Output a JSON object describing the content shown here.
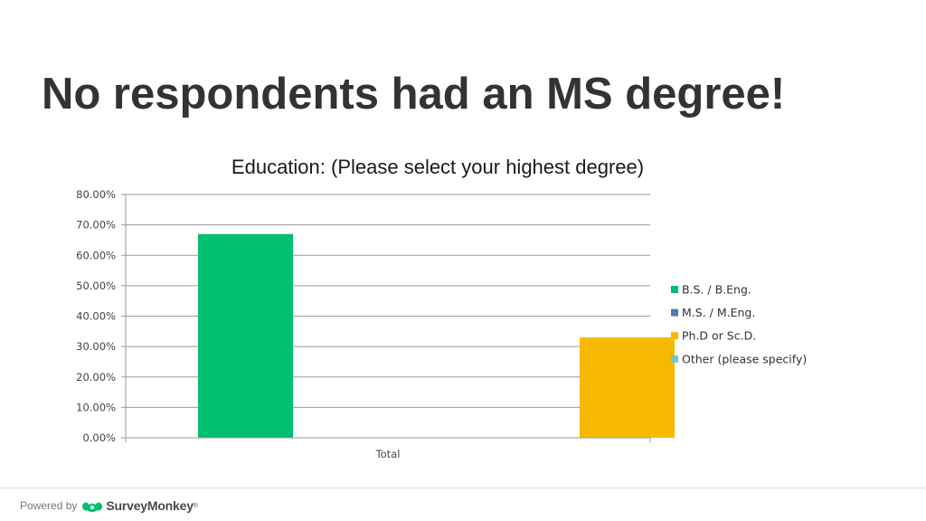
{
  "slide": {
    "title": "No respondents had an MS degree!"
  },
  "footer": {
    "powered_by": "Powered by",
    "brand": "SurveyMonkey",
    "brand_mark": "®"
  },
  "colors": {
    "bs": "#00bf6f",
    "ms": "#507cb6",
    "phd": "#f7b900",
    "other": "#6bc8cd",
    "grid": "#9a9a9a",
    "brand_green": "#00bf6f"
  },
  "chart_data": {
    "type": "bar",
    "title": "Education: (Please select your highest degree)",
    "categories": [
      "Total"
    ],
    "series": [
      {
        "name": "B.S. / B.Eng.",
        "values": [
          67.0
        ],
        "color": "#00bf6f"
      },
      {
        "name": "M.S. / M.Eng.",
        "values": [
          0.0
        ],
        "color": "#507cb6"
      },
      {
        "name": "Ph.D or Sc.D.",
        "values": [
          33.0
        ],
        "color": "#f7b900"
      },
      {
        "name": "Other (please specify)",
        "values": [
          0.0
        ],
        "color": "#6bc8cd"
      }
    ],
    "y_ticks": [
      "0.00%",
      "10.00%",
      "20.00%",
      "30.00%",
      "40.00%",
      "50.00%",
      "60.00%",
      "70.00%",
      "80.00%"
    ],
    "ylim": [
      0,
      80
    ],
    "y_unit": "%",
    "grid": true,
    "legend_position": "right"
  }
}
